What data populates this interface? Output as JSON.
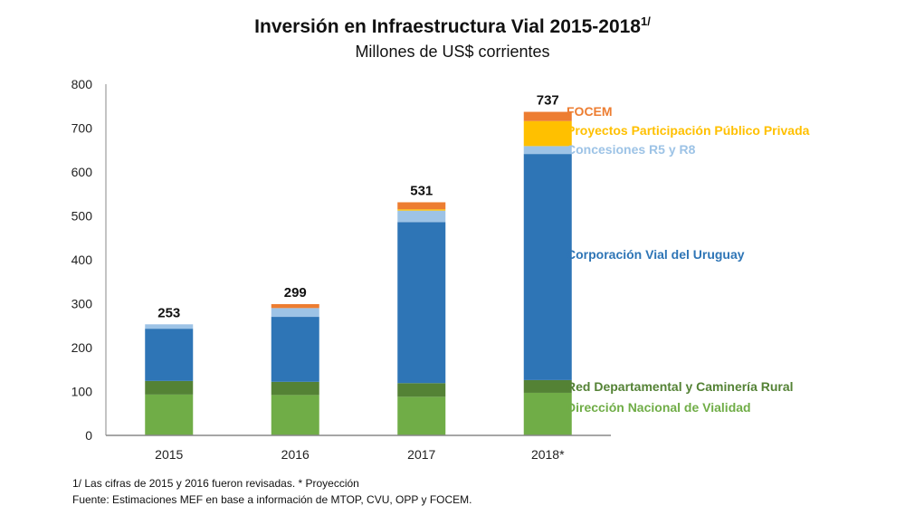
{
  "chart_data": {
    "type": "bar",
    "stacked": true,
    "title": "Inversión en Infraestructura Vial 2015-2018",
    "title_superscript": "1/",
    "subtitle": "Millones de US$ corrientes",
    "xlabel": "",
    "ylabel": "",
    "ylim": [
      0,
      800
    ],
    "yticks": [
      0,
      100,
      200,
      300,
      400,
      500,
      600,
      700,
      800
    ],
    "grid": false,
    "legend_position": "right",
    "categories": [
      "2015",
      "2016",
      "2017",
      "2018*"
    ],
    "totals": [
      253,
      299,
      531,
      737
    ],
    "series": [
      {
        "name": "Dirección Nacional de Vialidad",
        "color": "#70ad47",
        "values": [
          93,
          92,
          88,
          97
        ]
      },
      {
        "name": "Red Departamental y Caminería Rural",
        "color": "#548235",
        "values": [
          31,
          30,
          31,
          29
        ]
      },
      {
        "name": "Corporación Vial del Uruguay",
        "color": "#2e75b6",
        "values": [
          119,
          148,
          367,
          515
        ]
      },
      {
        "name": "Concesiones R5 y R8",
        "color": "#9dc3e6",
        "values": [
          10,
          20,
          26,
          18
        ]
      },
      {
        "name": "Proyectos Participación Público Privada",
        "color": "#ffc000",
        "values": [
          0,
          0,
          3,
          57
        ]
      },
      {
        "name": "FOCEM",
        "color": "#ed7d31",
        "values": [
          0,
          9,
          16,
          21
        ]
      }
    ]
  },
  "footnotes": {
    "note": "1/ Las cifras de 2015 y 2016 fueron revisadas. * Proyección",
    "source": "Fuente: Estimaciones MEF en base a información de MTOP, CVU, OPP y FOCEM."
  }
}
